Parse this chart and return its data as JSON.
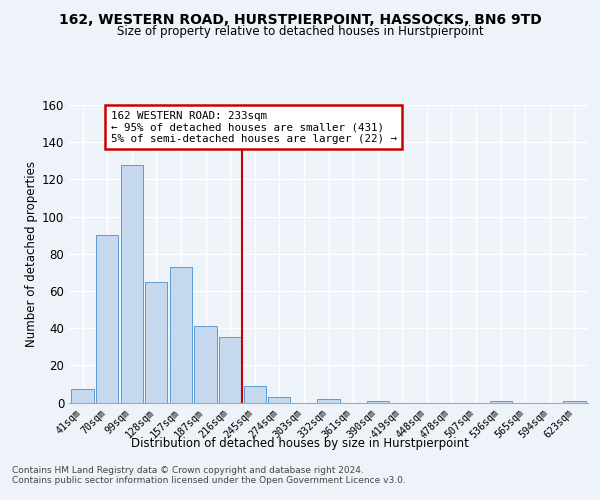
{
  "title_line1": "162, WESTERN ROAD, HURSTPIERPOINT, HASSOCKS, BN6 9TD",
  "title_line2": "Size of property relative to detached houses in Hurstpierpoint",
  "xlabel": "Distribution of detached houses by size in Hurstpierpoint",
  "ylabel": "Number of detached properties",
  "bin_labels": [
    "41sqm",
    "70sqm",
    "99sqm",
    "128sqm",
    "157sqm",
    "187sqm",
    "216sqm",
    "245sqm",
    "274sqm",
    "303sqm",
    "332sqm",
    "361sqm",
    "390sqm",
    "419sqm",
    "448sqm",
    "478sqm",
    "507sqm",
    "536sqm",
    "565sqm",
    "594sqm",
    "623sqm"
  ],
  "bar_heights": [
    7,
    90,
    128,
    65,
    73,
    41,
    35,
    9,
    3,
    0,
    2,
    0,
    1,
    0,
    0,
    0,
    0,
    1,
    0,
    0,
    1
  ],
  "bar_color": "#c5d8ee",
  "bar_edge_color": "#5b9bd5",
  "vline_color": "#cc0000",
  "annotation_text_line1": "162 WESTERN ROAD: 233sqm",
  "annotation_text_line2": "← 95% of detached houses are smaller (431)",
  "annotation_text_line3": "5% of semi-detached houses are larger (22) →",
  "annotation_box_color": "#ffffff",
  "annotation_box_edge": "#cc0000",
  "ylim": [
    0,
    160
  ],
  "yticks": [
    0,
    20,
    40,
    60,
    80,
    100,
    120,
    140,
    160
  ],
  "footer_text": "Contains HM Land Registry data © Crown copyright and database right 2024.\nContains public sector information licensed under the Open Government Licence v3.0.",
  "bg_color": "#eef2f9",
  "plot_bg_color": "#eef2f9",
  "grid_color": "#ffffff",
  "vline_bar_index": 7
}
